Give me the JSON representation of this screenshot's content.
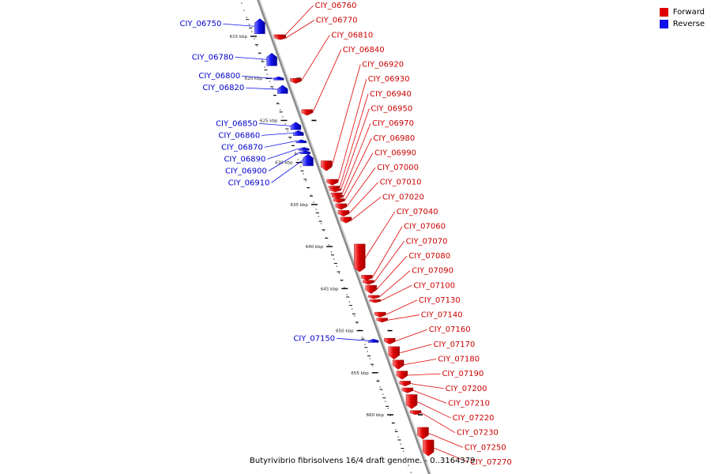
{
  "legend": [
    {
      "label": "Forward",
      "color": "#e00000"
    },
    {
      "label": "Reverse",
      "color": "#1010ee"
    }
  ],
  "caption": "Butyrivibrio fibrisolvens 16/4 draft genome. - 0..3164379",
  "colors": {
    "forward": "#e00000",
    "reverse": "#1010ee",
    "backbone": "#8a8a8a",
    "tick": "#000000"
  },
  "axis": {
    "unit": "kbp",
    "start_kbp": 612.2,
    "end_kbp": 664.9,
    "ticks_kbp": [
      615,
      620,
      625,
      630,
      635,
      640,
      645,
      650,
      655,
      660
    ]
  },
  "genes": [
    {
      "id": "CIY_06750",
      "strand": "reverse",
      "start": 612.9,
      "end": 614.7
    },
    {
      "id": "CIY_06760",
      "strand": "forward",
      "start": 614.8,
      "end": 615.0
    },
    {
      "id": "CIY_06770",
      "strand": "forward",
      "start": 615.0,
      "end": 615.4
    },
    {
      "id": "CIY_06780",
      "strand": "reverse",
      "start": 617.0,
      "end": 618.5
    },
    {
      "id": "CIY_06800",
      "strand": "reverse",
      "start": 619.8,
      "end": 620.2
    },
    {
      "id": "CIY_06810",
      "strand": "forward",
      "start": 620.0,
      "end": 620.6
    },
    {
      "id": "CIY_06820",
      "strand": "reverse",
      "start": 620.8,
      "end": 621.8
    },
    {
      "id": "CIY_06840",
      "strand": "forward",
      "start": 623.7,
      "end": 624.4
    },
    {
      "id": "CIY_06850",
      "strand": "reverse",
      "start": 625.2,
      "end": 626.1
    },
    {
      "id": "CIY_06860",
      "strand": "reverse",
      "start": 626.2,
      "end": 626.8
    },
    {
      "id": "CIY_06870",
      "strand": "reverse",
      "start": 627.3,
      "end": 627.6
    },
    {
      "id": "CIY_06890",
      "strand": "reverse",
      "start": 628.2,
      "end": 628.5
    },
    {
      "id": "CIY_06900",
      "strand": "reverse",
      "start": 628.6,
      "end": 628.9
    },
    {
      "id": "CIY_06910",
      "strand": "reverse",
      "start": 629.0,
      "end": 630.4
    },
    {
      "id": "CIY_06920",
      "strand": "forward",
      "start": 629.8,
      "end": 631.0
    },
    {
      "id": "CIY_06930",
      "strand": "forward",
      "start": 632.0,
      "end": 632.7
    },
    {
      "id": "CIY_06940",
      "strand": "forward",
      "start": 632.8,
      "end": 633.1
    },
    {
      "id": "CIY_06950",
      "strand": "forward",
      "start": 633.1,
      "end": 633.5
    },
    {
      "id": "CIY_06970",
      "strand": "forward",
      "start": 633.6,
      "end": 633.9
    },
    {
      "id": "CIY_06980",
      "strand": "forward",
      "start": 633.9,
      "end": 634.3
    },
    {
      "id": "CIY_06990",
      "strand": "forward",
      "start": 634.3,
      "end": 634.8
    },
    {
      "id": "CIY_07000",
      "strand": "forward",
      "start": 634.9,
      "end": 635.6
    },
    {
      "id": "CIY_07010",
      "strand": "forward",
      "start": 635.7,
      "end": 636.4
    },
    {
      "id": "CIY_07020",
      "strand": "forward",
      "start": 636.5,
      "end": 637.2
    },
    {
      "id": "CIY_07040",
      "strand": "forward",
      "start": 639.7,
      "end": 643.0
    },
    {
      "id": "CIY_07060",
      "strand": "forward",
      "start": 643.4,
      "end": 644.0
    },
    {
      "id": "CIY_07070",
      "strand": "forward",
      "start": 644.0,
      "end": 644.5
    },
    {
      "id": "CIY_07080",
      "strand": "forward",
      "start": 644.6,
      "end": 645.6
    },
    {
      "id": "CIY_07090",
      "strand": "forward",
      "start": 645.8,
      "end": 646.2
    },
    {
      "id": "CIY_07100",
      "strand": "forward",
      "start": 646.3,
      "end": 646.6
    },
    {
      "id": "CIY_07130",
      "strand": "forward",
      "start": 647.8,
      "end": 648.4
    },
    {
      "id": "CIY_07140",
      "strand": "forward",
      "start": 648.5,
      "end": 649.0
    },
    {
      "id": "CIY_07150",
      "strand": "reverse",
      "start": 651.0,
      "end": 651.4
    },
    {
      "id": "CIY_07160",
      "strand": "forward",
      "start": 650.9,
      "end": 651.6
    },
    {
      "id": "CIY_07170",
      "strand": "forward",
      "start": 651.9,
      "end": 653.4
    },
    {
      "id": "CIY_07180",
      "strand": "forward",
      "start": 653.5,
      "end": 654.6
    },
    {
      "id": "CIY_07190",
      "strand": "forward",
      "start": 654.8,
      "end": 655.8
    },
    {
      "id": "CIY_07200",
      "strand": "forward",
      "start": 656.0,
      "end": 656.6
    },
    {
      "id": "CIY_07210",
      "strand": "forward",
      "start": 656.8,
      "end": 657.4
    },
    {
      "id": "CIY_07220",
      "strand": "forward",
      "start": 657.6,
      "end": 659.3
    },
    {
      "id": "CIY_07230",
      "strand": "forward",
      "start": 659.5,
      "end": 660.0
    },
    {
      "id": "CIY_07250",
      "strand": "forward",
      "start": 661.5,
      "end": 662.9
    },
    {
      "id": "CIY_07270",
      "strand": "forward",
      "start": 663.0,
      "end": 664.9
    }
  ]
}
